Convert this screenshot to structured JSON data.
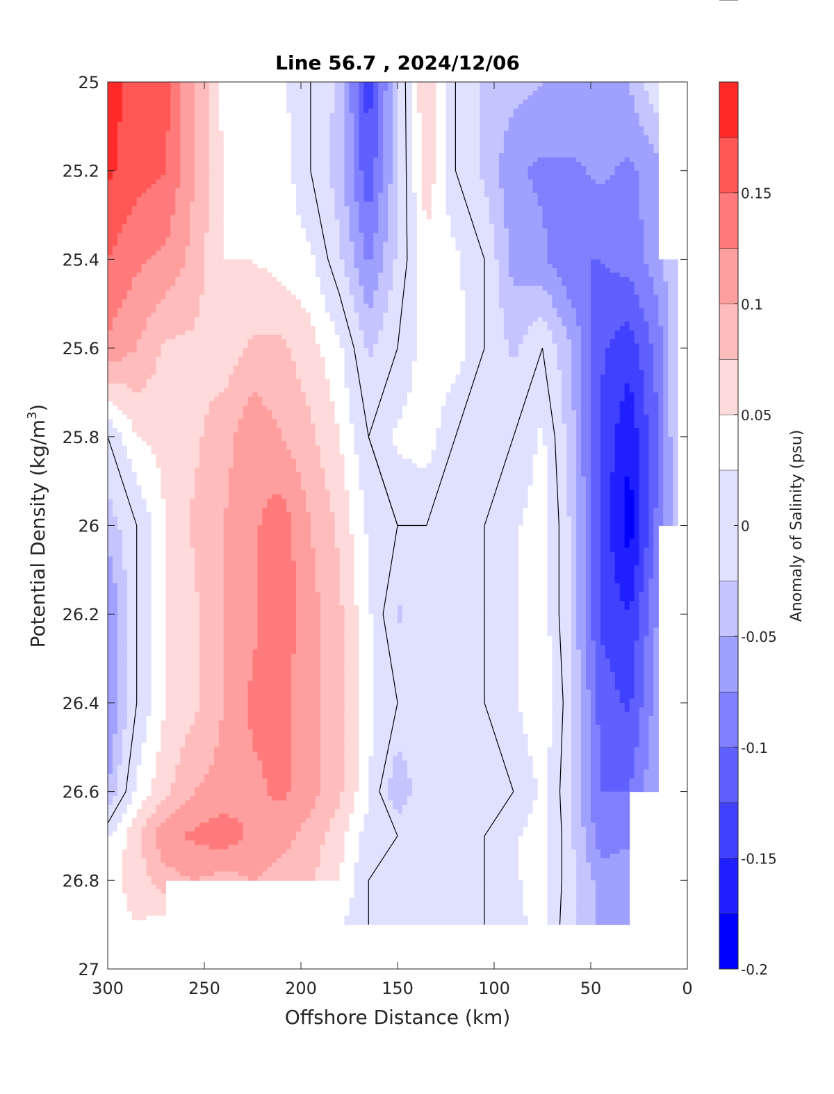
{
  "chart_data": {
    "type": "contour",
    "title": "Line 56.7 , 2024/12/06",
    "xlabel": "Offshore Distance (km)",
    "ylabel": "Potential Density (kg/m",
    "ylabel_sup": "3",
    "ylabel_close": ")",
    "x_reversed": true,
    "y_reversed": true,
    "xlim": [
      0,
      300
    ],
    "ylim": [
      25,
      27
    ],
    "xticks": [
      300,
      250,
      200,
      150,
      100,
      50,
      0
    ],
    "xtick_labels": [
      "300",
      "250",
      "200",
      "150",
      "100",
      "50",
      "0"
    ],
    "yticks": [
      25,
      25.2,
      25.4,
      25.6,
      25.8,
      26,
      26.2,
      26.4,
      26.6,
      26.8,
      27
    ],
    "ytick_labels": [
      "25",
      "25.2",
      "25.4",
      "25.6",
      "25.8",
      "26",
      "26.2",
      "26.4",
      "26.6",
      "26.8",
      "27"
    ],
    "colorbar": {
      "label": "Anomaly of Salinity (psu)",
      "range": [
        -0.2,
        0.2
      ],
      "ticks": [
        -0.2,
        -0.15,
        -0.1,
        -0.05,
        0,
        0.05,
        0.1,
        0.15
      ],
      "tick_labels": [
        "-0.2",
        "-0.15",
        "-0.1",
        "-0.05",
        "0",
        "0.05",
        "0.1",
        "0.15"
      ],
      "levels": [
        -0.2,
        -0.175,
        -0.15,
        -0.125,
        -0.1,
        -0.075,
        -0.05,
        -0.025,
        0.025,
        0.05,
        0.075,
        0.1,
        0.125,
        0.15,
        0.175,
        0.2
      ],
      "colors": [
        "#0000ff",
        "#2020ff",
        "#4040ff",
        "#6060ff",
        "#8080ff",
        "#a0a0ff",
        "#c4c4ff",
        "#e0e0ff",
        "#ffffff",
        "#ffdada",
        "#ffbcbc",
        "#ff9e9e",
        "#ff7a7a",
        "#ff5656",
        "#ff2a2a",
        "#ff0000"
      ]
    },
    "x": [
      300,
      285,
      270,
      255,
      240,
      225,
      210,
      195,
      180,
      165,
      150,
      135,
      120,
      105,
      90,
      75,
      60,
      45,
      30,
      15,
      5
    ],
    "y": [
      25.0,
      25.2,
      25.4,
      25.6,
      25.8,
      26.0,
      26.2,
      26.4,
      26.6,
      26.7,
      26.8,
      26.9
    ],
    "z": [
      [
        0.19,
        0.16,
        0.16,
        0.1,
        0.04,
        0.03,
        0.03,
        0.0,
        -0.03,
        -0.14,
        -0.03,
        0.08,
        0.0,
        -0.03,
        -0.04,
        -0.05,
        -0.05,
        -0.07,
        -0.05,
        0.0,
        null
      ],
      [
        0.18,
        0.16,
        0.15,
        0.1,
        0.05,
        0.04,
        0.04,
        0.0,
        -0.04,
        -0.12,
        -0.03,
        0.07,
        0.0,
        -0.03,
        -0.07,
        -0.08,
        -0.08,
        -0.07,
        -0.08,
        -0.06,
        null
      ],
      [
        0.15,
        0.13,
        0.12,
        0.09,
        0.05,
        0.05,
        0.04,
        0.03,
        -0.02,
        -0.08,
        -0.02,
        0.04,
        0.03,
        0.0,
        -0.06,
        -0.07,
        -0.1,
        -0.1,
        -0.09,
        -0.06,
        -0.02
      ],
      [
        0.12,
        0.1,
        0.07,
        0.07,
        0.06,
        0.08,
        0.08,
        0.06,
        0.03,
        -0.03,
        0.0,
        0.04,
        0.04,
        0.0,
        -0.03,
        0.0,
        -0.05,
        -0.12,
        -0.14,
        -0.09,
        -0.02
      ],
      [
        0.0,
        0.05,
        0.06,
        0.07,
        0.09,
        0.12,
        0.1,
        0.08,
        0.05,
        0.0,
        0.03,
        0.04,
        0.0,
        0.0,
        0.0,
        0.03,
        -0.04,
        -0.13,
        -0.17,
        -0.1,
        -0.02
      ],
      [
        -0.04,
        0.0,
        0.05,
        0.08,
        0.1,
        0.12,
        0.14,
        0.1,
        0.07,
        0.02,
        0.0,
        0.0,
        0.0,
        0.0,
        0.02,
        0.04,
        -0.03,
        -0.13,
        -0.19,
        -0.09,
        -0.03
      ],
      [
        -0.08,
        0.0,
        0.05,
        0.07,
        0.1,
        0.12,
        0.14,
        0.11,
        0.08,
        0.03,
        -0.03,
        0.0,
        0.0,
        0.0,
        0.02,
        0.04,
        -0.03,
        -0.13,
        -0.15,
        -0.07,
        null
      ],
      [
        -0.08,
        0.0,
        0.05,
        0.07,
        0.1,
        0.13,
        0.13,
        0.11,
        0.08,
        0.03,
        0.0,
        0.0,
        0.0,
        0.0,
        0.02,
        0.05,
        -0.02,
        -0.11,
        -0.13,
        -0.06,
        null
      ],
      [
        -0.05,
        0.03,
        0.07,
        0.1,
        0.11,
        0.12,
        0.13,
        0.11,
        0.08,
        0.03,
        -0.05,
        0.0,
        0.0,
        0.0,
        0.0,
        0.03,
        -0.02,
        -0.1,
        -0.1,
        -0.05,
        null
      ],
      [
        0.02,
        0.07,
        0.12,
        0.13,
        0.14,
        0.12,
        0.11,
        0.09,
        0.06,
        0.01,
        0.0,
        0.0,
        0.0,
        0.0,
        0.02,
        0.04,
        -0.02,
        -0.09,
        -0.08,
        null,
        null
      ],
      [
        0.04,
        0.06,
        0.09,
        0.1,
        0.09,
        0.1,
        0.09,
        0.08,
        0.05,
        0.0,
        0.0,
        0.0,
        0.0,
        0.0,
        0.02,
        0.04,
        -0.02,
        -0.06,
        -0.06,
        null,
        null
      ],
      [
        0.04,
        0.05,
        0.04,
        null,
        null,
        null,
        null,
        null,
        0.03,
        0.0,
        0.0,
        0.0,
        0.0,
        0.0,
        0.02,
        0.03,
        -0.02,
        -0.06,
        -0.06,
        null,
        null
      ]
    ]
  }
}
